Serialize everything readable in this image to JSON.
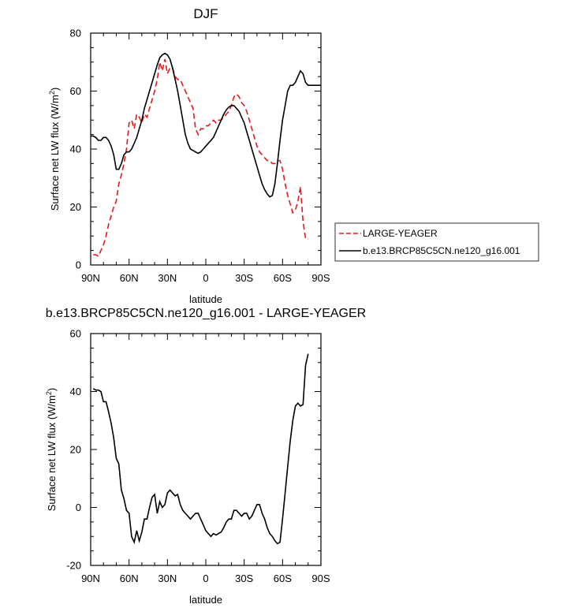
{
  "chart_data": [
    {
      "type": "line",
      "title": "DJF",
      "xlabel": "latitude",
      "ylabel": "Surface net LW flux (W/m",
      "ylabel_sup": "2",
      "ylabel_tail": ")",
      "xlim": [
        90,
        -90
      ],
      "ylim": [
        0,
        80
      ],
      "x_ticks": [
        90,
        60,
        30,
        0,
        -30,
        -60,
        -90
      ],
      "x_tick_labels": [
        "90N",
        "60N",
        "30N",
        "0",
        "30S",
        "60S",
        "90S"
      ],
      "y_ticks": [
        0,
        20,
        40,
        60,
        80
      ],
      "y_tick_labels": [
        "0",
        "20",
        "40",
        "60",
        "80"
      ],
      "legend": "outside-right",
      "series": [
        {
          "name": "LARGE-YEAGER",
          "color": "#e31a1c",
          "dash": "dashed",
          "x": [
            88,
            86,
            84,
            82,
            80,
            78,
            76,
            74,
            72,
            70,
            68,
            66,
            64,
            62,
            60,
            58,
            56,
            54,
            52,
            50,
            48,
            46,
            44,
            42,
            40,
            38,
            36,
            34,
            32,
            30,
            28,
            26,
            24,
            22,
            20,
            18,
            16,
            14,
            12,
            10,
            8,
            6,
            4,
            2,
            0,
            -2,
            -4,
            -6,
            -8,
            -10,
            -12,
            -14,
            -16,
            -18,
            -20,
            -22,
            -24,
            -26,
            -28,
            -30,
            -32,
            -34,
            -36,
            -38,
            -40,
            -42,
            -44,
            -46,
            -48,
            -50,
            -52,
            -54,
            -56,
            -58,
            -60,
            -62,
            -64,
            -66,
            -68,
            -70,
            -72,
            -74,
            -76,
            -78,
            -80
          ],
          "y": [
            3.5,
            3.5,
            3,
            5,
            7,
            10,
            14,
            17,
            20,
            22,
            28,
            31,
            35,
            40,
            49,
            50,
            47,
            52,
            51,
            49,
            52,
            51,
            54,
            57,
            60,
            64,
            70,
            67,
            71,
            66,
            68,
            68,
            65,
            64,
            64,
            62,
            60,
            58,
            56,
            54,
            47,
            45,
            47,
            47,
            48,
            48,
            49,
            50,
            49,
            50,
            50,
            51,
            52,
            53,
            55,
            58,
            59,
            58,
            56,
            55,
            53,
            50,
            47,
            44,
            41,
            39,
            38,
            37,
            36,
            36,
            35,
            35,
            36,
            36,
            33,
            28,
            24,
            21,
            18,
            19,
            22,
            27,
            15,
            9,
            9
          ]
        },
        {
          "name": "b.e13.BRCP85C5CN.ne120_g16.001",
          "color": "#000000",
          "dash": "solid",
          "x": [
            90,
            88,
            86,
            84,
            82,
            80,
            78,
            76,
            74,
            72,
            70,
            68,
            66,
            64,
            62,
            60,
            58,
            56,
            54,
            52,
            50,
            48,
            46,
            44,
            42,
            40,
            38,
            36,
            34,
            32,
            30,
            28,
            26,
            24,
            22,
            20,
            18,
            16,
            14,
            12,
            10,
            8,
            6,
            4,
            2,
            0,
            -2,
            -4,
            -6,
            -8,
            -10,
            -12,
            -14,
            -16,
            -18,
            -20,
            -22,
            -24,
            -26,
            -28,
            -30,
            -32,
            -34,
            -36,
            -38,
            -40,
            -42,
            -44,
            -46,
            -48,
            -50,
            -52,
            -54,
            -56,
            -58,
            -60,
            -62,
            -64,
            -66,
            -68,
            -70,
            -72,
            -74,
            -76,
            -78,
            -80,
            -82,
            -84,
            -86,
            -88,
            -90
          ],
          "y": [
            44.5,
            44.5,
            44,
            43,
            43,
            44,
            44,
            43,
            41,
            38,
            33,
            33,
            35,
            38,
            39,
            39,
            40,
            42,
            44,
            47,
            50,
            54,
            57,
            60,
            63,
            66,
            69,
            71.5,
            72.5,
            73,
            72.5,
            71,
            68,
            64,
            60,
            55,
            50,
            45,
            42,
            40,
            39.5,
            39,
            38.5,
            39,
            40,
            41,
            42,
            43,
            44,
            46,
            48,
            50,
            52,
            53.5,
            54.5,
            55,
            55,
            54,
            53,
            51,
            49,
            46,
            43,
            40,
            37,
            34,
            31,
            28,
            26,
            24.5,
            23.5,
            24,
            28,
            35,
            43,
            50,
            55,
            60,
            62,
            62,
            63,
            65,
            67,
            66,
            63,
            62,
            62,
            62,
            62,
            62,
            62
          ]
        }
      ]
    },
    {
      "type": "line",
      "title": "b.e13.BRCP85C5CN.ne120_g16.001 - LARGE-YEAGER",
      "xlabel": "latitude",
      "ylabel": "Surface net LW flux (W/m",
      "ylabel_sup": "2",
      "ylabel_tail": ")",
      "xlim": [
        90,
        -90
      ],
      "ylim": [
        -20,
        60
      ],
      "x_ticks": [
        90,
        60,
        30,
        0,
        -30,
        -60,
        -90
      ],
      "x_tick_labels": [
        "90N",
        "60N",
        "30N",
        "0",
        "30S",
        "60S",
        "90S"
      ],
      "y_ticks": [
        -20,
        0,
        20,
        40,
        60
      ],
      "y_tick_labels": [
        "-20",
        "0",
        "20",
        "40",
        "60"
      ],
      "series": [
        {
          "color": "#000000",
          "dash": "solid",
          "x": [
            88,
            86,
            84,
            82,
            80,
            78,
            76,
            74,
            72,
            70,
            68,
            66,
            64,
            62,
            60,
            58,
            56,
            54,
            52,
            50,
            48,
            46,
            44,
            42,
            40,
            38,
            36,
            34,
            32,
            30,
            28,
            26,
            24,
            22,
            20,
            18,
            16,
            14,
            12,
            10,
            8,
            6,
            4,
            2,
            0,
            -2,
            -4,
            -6,
            -8,
            -10,
            -12,
            -14,
            -16,
            -18,
            -20,
            -22,
            -24,
            -26,
            -28,
            -30,
            -32,
            -34,
            -36,
            -38,
            -40,
            -42,
            -44,
            -46,
            -48,
            -50,
            -52,
            -54,
            -56,
            -58,
            -60,
            -62,
            -64,
            -66,
            -68,
            -70,
            -72,
            -74,
            -76,
            -78,
            -80
          ],
          "y": [
            41,
            40.5,
            40.5,
            40,
            36.5,
            36.5,
            33,
            29,
            24,
            17,
            15,
            6,
            3,
            -1,
            -2,
            -10,
            -12,
            -8,
            -11.5,
            -8.5,
            -4,
            -4,
            0,
            3.5,
            4.5,
            -2,
            2,
            0,
            1,
            5,
            6,
            5,
            4,
            4.5,
            1,
            -1,
            -2,
            -3,
            -4,
            -3,
            -2,
            -2,
            -4,
            -6,
            -8,
            -9,
            -10,
            -9,
            -9.5,
            -9,
            -8.5,
            -7,
            -5,
            -4,
            -4,
            -1,
            -1,
            -2,
            -3,
            -2,
            -2,
            -4,
            -3,
            -1,
            1,
            1,
            -2,
            -4,
            -7,
            -9,
            -10,
            -11.5,
            -12.5,
            -12,
            -4,
            5,
            14,
            23,
            30,
            35,
            36,
            35,
            35.5,
            49,
            53
          ]
        }
      ]
    }
  ]
}
